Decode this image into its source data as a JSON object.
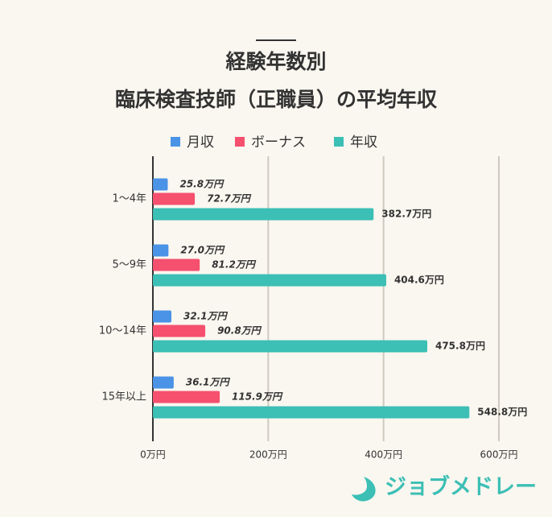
{
  "chart_data": {
    "type": "bar",
    "orientation": "horizontal",
    "title": [
      "経験年数別",
      "臨床検査技師（正職員）の平均年収"
    ],
    "categories": [
      "1〜4年",
      "5〜9年",
      "10〜14年",
      "15年以上"
    ],
    "series": [
      {
        "name": "月収",
        "color": "#4a93e6",
        "values": [
          25.8,
          27.0,
          32.1,
          36.1
        ],
        "value_labels": [
          "25.8万円",
          "27.0万円",
          "32.1万円",
          "36.1万円"
        ]
      },
      {
        "name": "ボーナス",
        "color": "#f5506e",
        "values": [
          72.7,
          81.2,
          90.8,
          115.9
        ],
        "value_labels": [
          "72.7万円",
          "81.2万円",
          "90.8万円",
          "115.9万円"
        ]
      },
      {
        "name": "年収",
        "color": "#3cbfb5",
        "values": [
          382.7,
          404.6,
          475.8,
          548.8
        ],
        "value_labels": [
          "382.7万円",
          "404.6万円",
          "475.8万円",
          "548.8万円"
        ]
      }
    ],
    "xlim": [
      0,
      600
    ],
    "xticks": [
      {
        "value": 0,
        "label": "0万円"
      },
      {
        "value": 200,
        "label": "200万円"
      },
      {
        "value": 400,
        "label": "400万円"
      },
      {
        "value": 600,
        "label": "600万円"
      }
    ],
    "grid": true
  },
  "brand": "ジョブメドレー"
}
